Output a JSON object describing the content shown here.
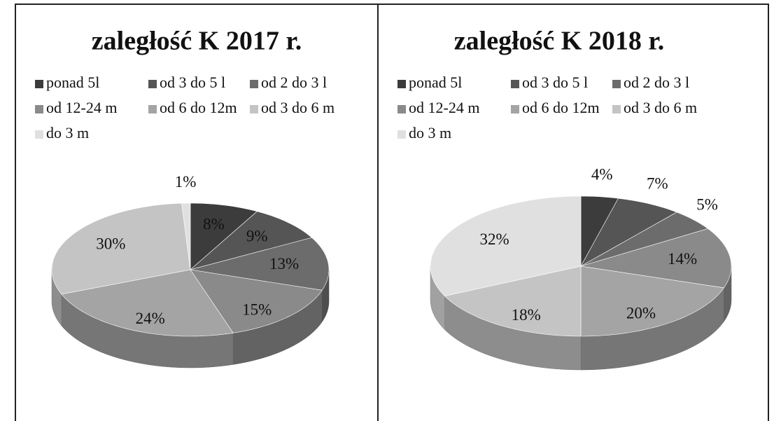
{
  "chart_data": [
    {
      "type": "pie",
      "title": "zaległość K 2017 r.",
      "categories": [
        "ponad 5l",
        "od 3 do 5 l",
        "od 2 do 3 l",
        "od 12-24 m",
        "od 6 do 12m",
        "od 3 do 6 m",
        "do 3 m"
      ],
      "values": [
        8,
        9,
        13,
        15,
        24,
        30,
        1
      ],
      "value_labels": [
        "8%",
        "9%",
        "13%",
        "15%",
        "24%",
        "30%",
        "1%"
      ],
      "colors": [
        "#3c3c3c",
        "#555555",
        "#6c6c6c",
        "#8a8a8a",
        "#a4a4a4",
        "#c4c4c4",
        "#e0e0e0"
      ],
      "legend": "top"
    },
    {
      "type": "pie",
      "title": "zaległość K 2018 r.",
      "categories": [
        "ponad 5l",
        "od 3 do 5 l",
        "od 2 do 3 l",
        "od 12-24 m",
        "od 6 do 12m",
        "od 3 do 6 m",
        "do 3 m"
      ],
      "values": [
        4,
        7,
        5,
        14,
        20,
        18,
        32
      ],
      "value_labels": [
        "4%",
        "7%",
        "5%",
        "14%",
        "20%",
        "18%",
        "32%"
      ],
      "colors": [
        "#3c3c3c",
        "#555555",
        "#6c6c6c",
        "#8a8a8a",
        "#a4a4a4",
        "#c4c4c4",
        "#e0e0e0"
      ],
      "legend": "top"
    }
  ]
}
